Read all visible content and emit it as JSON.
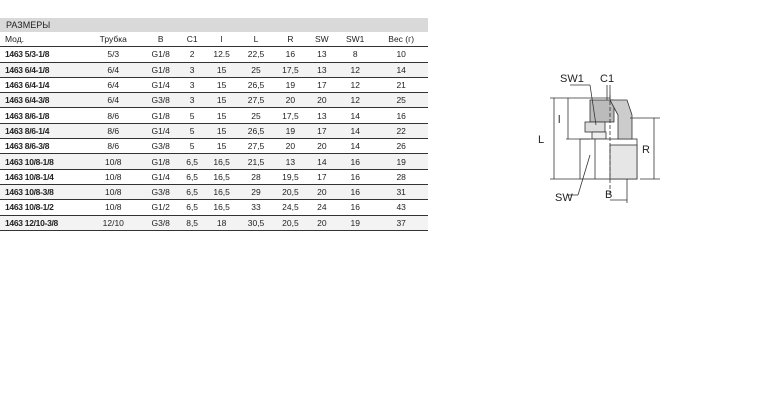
{
  "table": {
    "title": "РАЗМЕРЫ",
    "headers": [
      "Мод.",
      "Трубка",
      "B",
      "C1",
      "l",
      "L",
      "R",
      "SW",
      "SW1",
      "Вес (г)"
    ],
    "rows": [
      [
        "1463 5/3-1/8",
        "5/3",
        "G1/8",
        "2",
        "12.5",
        "22,5",
        "16",
        "13",
        "8",
        "10"
      ],
      [
        "1463 6/4-1/8",
        "6/4",
        "G1/8",
        "3",
        "15",
        "25",
        "17,5",
        "13",
        "12",
        "14"
      ],
      [
        "1463 6/4-1/4",
        "6/4",
        "G1/4",
        "3",
        "15",
        "26,5",
        "19",
        "17",
        "12",
        "21"
      ],
      [
        "1463 6/4-3/8",
        "6/4",
        "G3/8",
        "3",
        "15",
        "27,5",
        "20",
        "20",
        "12",
        "25"
      ],
      [
        "1463 8/6-1/8",
        "8/6",
        "G1/8",
        "5",
        "15",
        "25",
        "17,5",
        "13",
        "14",
        "16"
      ],
      [
        "1463 8/6-1/4",
        "8/6",
        "G1/4",
        "5",
        "15",
        "26,5",
        "19",
        "17",
        "14",
        "22"
      ],
      [
        "1463 8/6-3/8",
        "8/6",
        "G3/8",
        "5",
        "15",
        "27,5",
        "20",
        "20",
        "14",
        "26"
      ],
      [
        "1463 10/8-1/8",
        "10/8",
        "G1/8",
        "6,5",
        "16,5",
        "21,5",
        "13",
        "14",
        "16",
        "19"
      ],
      [
        "1463 10/8-1/4",
        "10/8",
        "G1/4",
        "6,5",
        "16,5",
        "28",
        "19,5",
        "17",
        "16",
        "28"
      ],
      [
        "1463 10/8-3/8",
        "10/8",
        "G3/8",
        "6,5",
        "16,5",
        "29",
        "20,5",
        "20",
        "16",
        "31"
      ],
      [
        "1463 10/8-1/2",
        "10/8",
        "G1/2",
        "6,5",
        "16,5",
        "33",
        "24,5",
        "24",
        "16",
        "43"
      ],
      [
        "1463 12/10-3/8",
        "12/10",
        "G3/8",
        "8,5",
        "18",
        "30,5",
        "20,5",
        "20",
        "19",
        "37"
      ]
    ]
  },
  "drawing": {
    "labels": {
      "sw1": "SW1",
      "c1": "C1",
      "l_small": "l",
      "l": "L",
      "r": "R",
      "sw": "SW",
      "b": "B"
    }
  }
}
